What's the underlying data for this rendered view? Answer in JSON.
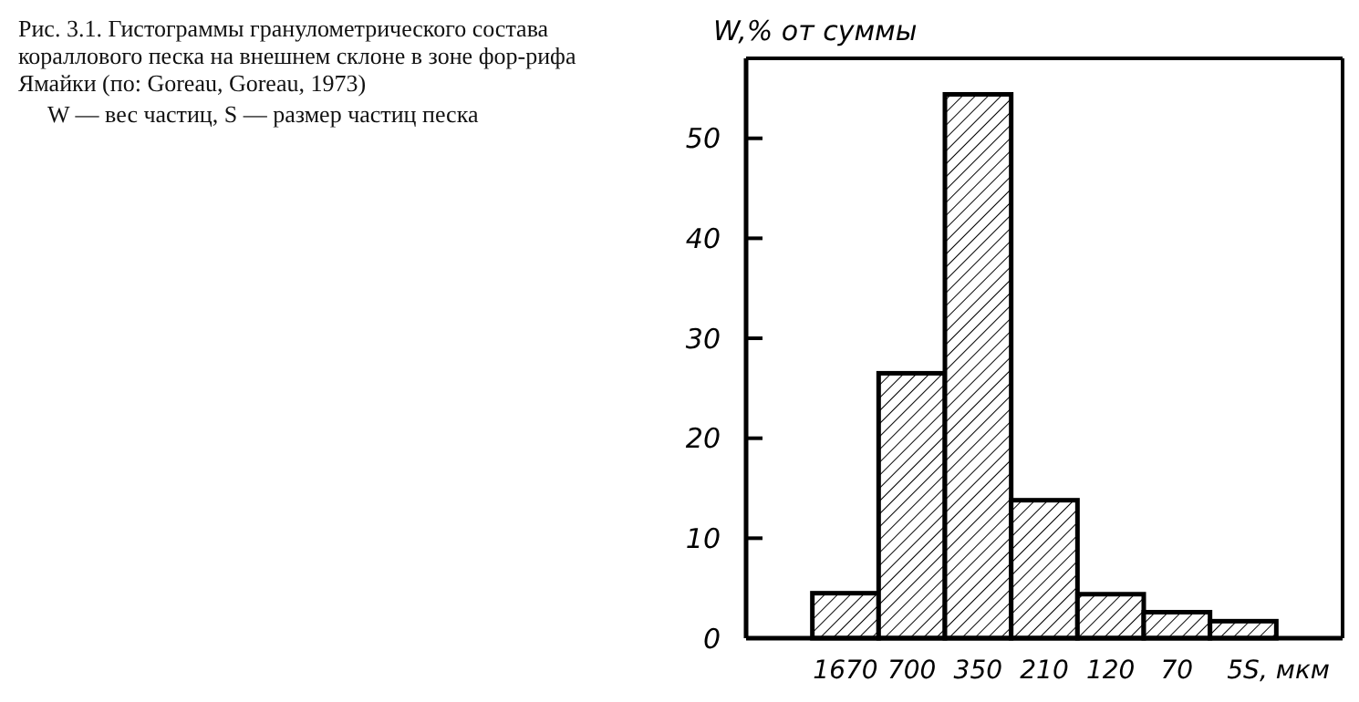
{
  "chart_data": {
    "type": "bar",
    "title": "Рис. 3.1. Гистограммы гранулометрического состава кораллового песка на внешнем склоне в зоне фор-рифа Ямайки (по: Goreau, Goreau, 1973)",
    "subtitle": "W — вес частиц, S — размер частиц песка",
    "ylabel": "W,% от суммы",
    "xlabel": ", мкм",
    "categories": [
      "1670",
      "700",
      "350",
      "210",
      "120",
      "70",
      "5S"
    ],
    "values": [
      4.5,
      26.5,
      54.4,
      13.8,
      4.4,
      2.6,
      1.7
    ],
    "color": "#000000",
    "ylim": [
      0,
      58
    ],
    "yticks": [
      0,
      10,
      20,
      30,
      40,
      50
    ],
    "grid": false
  }
}
